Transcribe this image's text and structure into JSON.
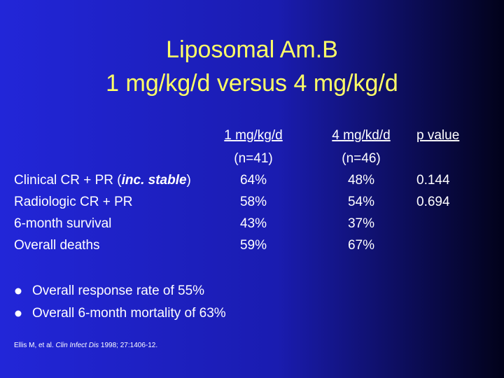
{
  "title": {
    "lines": [
      "Liposomal Am.B",
      "1 mg/kg/d  versus  4 mg/kg/d"
    ]
  },
  "table": {
    "columns": [
      {
        "header": "1 mg/kg/d",
        "subheader": "(n=41)"
      },
      {
        "header": "4 mg/kd/d",
        "subheader": "(n=46)"
      },
      {
        "header": "p value"
      }
    ],
    "rows": [
      {
        "label": [
          {
            "text": "Clinical CR + PR ("
          },
          {
            "text": "inc. stable",
            "emphasis": true
          },
          {
            "text": ")"
          }
        ],
        "cells": [
          "64%",
          "48%",
          "0.144"
        ]
      },
      {
        "label": [
          {
            "text": "Radiologic CR + PR"
          }
        ],
        "cells": [
          "58%",
          "54%",
          "0.694"
        ]
      },
      {
        "label": [
          {
            "text": "6-month survival"
          }
        ],
        "cells": [
          "43%",
          "37%"
        ]
      },
      {
        "label": [
          {
            "text": "Overall deaths"
          }
        ],
        "cells": [
          "59%",
          "67%"
        ]
      }
    ]
  },
  "bullets": [
    "Overall response rate of 55%",
    "Overall 6-month mortality of 63%"
  ],
  "citation": [
    {
      "text": "Ellis M, et al.  "
    },
    {
      "text": "Clin Infect Dis",
      "emphasis": true
    },
    {
      "text": " 1998; 27:1406-12."
    }
  ]
}
